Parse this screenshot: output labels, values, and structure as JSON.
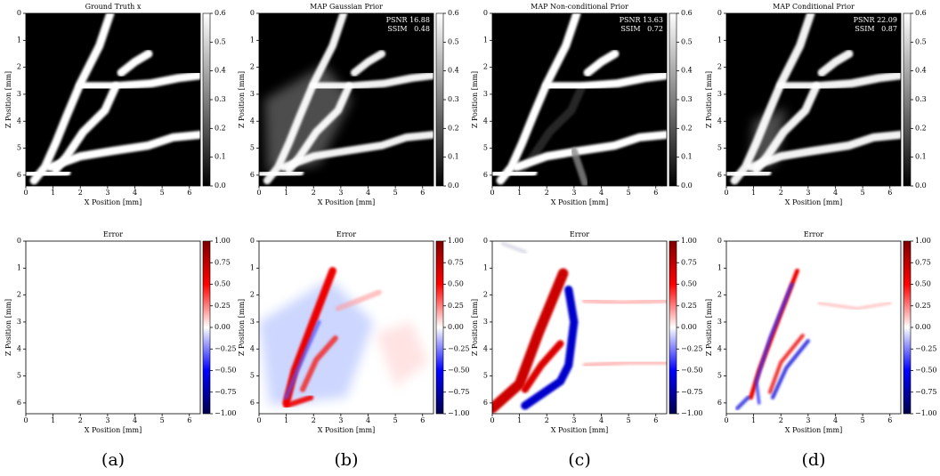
{
  "chart_data": [
    {
      "type": "image",
      "title": "Ground Truth x",
      "xlabel": "X Position [mm]",
      "ylabel": "Z Position [mm]",
      "cmap": "gray",
      "xlim": [
        0,
        6.4
      ],
      "ylim": [
        6.4,
        0
      ],
      "xticks": [
        0,
        1,
        2,
        3,
        4,
        5,
        6
      ],
      "yticks": [
        0,
        1,
        2,
        3,
        4,
        5,
        6
      ],
      "colorbar": {
        "lim": [
          0,
          0.6
        ],
        "ticks": [
          {
            "value": 0,
            "label": "0.0"
          },
          0.1,
          0.2,
          0.3,
          0.4,
          0.5,
          0.6
        ]
      }
    },
    {
      "type": "image",
      "title": "MAP Gaussian Prior",
      "xlabel": "X Position [mm]",
      "ylabel": "Z Position [mm]",
      "cmap": "gray",
      "xlim": [
        0,
        6.4
      ],
      "ylim": [
        6.4,
        0
      ],
      "xticks": [
        0,
        1,
        2,
        3,
        4,
        5,
        6
      ],
      "yticks": [
        0,
        1,
        2,
        3,
        4,
        5,
        6
      ],
      "colorbar": {
        "lim": [
          0,
          0.6
        ],
        "ticks": [
          {
            "value": 0,
            "label": "0.0"
          },
          0.1,
          0.2,
          0.3,
          0.4,
          0.5,
          0.6
        ]
      },
      "annotations": [
        "PSNR 16.88",
        "SSIM   0.48"
      ]
    },
    {
      "type": "image",
      "title": "MAP Non-conditional Prior",
      "xlabel": "X Position [mm]",
      "ylabel": "Z Position [mm]",
      "cmap": "gray",
      "xlim": [
        0,
        6.4
      ],
      "ylim": [
        6.4,
        0
      ],
      "xticks": [
        0,
        1,
        2,
        3,
        4,
        5,
        6
      ],
      "yticks": [
        0,
        1,
        2,
        3,
        4,
        5,
        6
      ],
      "colorbar": {
        "lim": [
          0,
          0.6
        ],
        "ticks": [
          {
            "value": 0,
            "label": "0.0"
          },
          0.1,
          0.2,
          0.3,
          0.4,
          0.5,
          0.6
        ]
      },
      "annotations": [
        "PSNR 13.63",
        "SSIM   0.72"
      ]
    },
    {
      "type": "image",
      "title": "MAP Conditional Prior",
      "xlabel": "X Position [mm]",
      "ylabel": "Z Position [mm]",
      "cmap": "gray",
      "xlim": [
        0,
        6.4
      ],
      "ylim": [
        6.4,
        0
      ],
      "xticks": [
        0,
        1,
        2,
        3,
        4,
        5,
        6
      ],
      "yticks": [
        0,
        1,
        2,
        3,
        4,
        5,
        6
      ],
      "colorbar": {
        "lim": [
          0,
          0.6
        ],
        "ticks": [
          {
            "value": 0,
            "label": "0.0"
          },
          0.1,
          0.2,
          0.3,
          0.4,
          0.5,
          0.6
        ]
      },
      "annotations": [
        "PSNR 22.09",
        "SSIM   0.87"
      ]
    },
    {
      "type": "image",
      "title": "Error",
      "xlabel": "X Position [mm]",
      "ylabel": "Z Position [mm]",
      "cmap": "seismic",
      "xlim": [
        0,
        6.4
      ],
      "ylim": [
        6.4,
        0
      ],
      "xticks": [
        0,
        1,
        2,
        3,
        4,
        5,
        6
      ],
      "yticks": [
        0,
        1,
        2,
        3,
        4,
        5,
        6
      ],
      "colorbar": {
        "lim": [
          -1,
          1
        ],
        "ticks": [
          {
            "value": -1,
            "label": "−1.00"
          },
          {
            "value": -0.75,
            "label": "−0.75"
          },
          {
            "value": -0.5,
            "label": "−0.50"
          },
          {
            "value": -0.25,
            "label": "−0.25"
          },
          {
            "value": 0,
            "label": "0.00"
          },
          {
            "value": 0.25,
            "label": "0.25"
          },
          {
            "value": 0.5,
            "label": "0.50"
          },
          {
            "value": 0.75,
            "label": "0.75"
          },
          {
            "value": 1,
            "label": "1.00"
          }
        ]
      }
    },
    {
      "type": "image",
      "title": "Error",
      "xlabel": "X Position [mm]",
      "ylabel": "Z Position [mm]",
      "cmap": "seismic",
      "xlim": [
        0,
        6.4
      ],
      "ylim": [
        6.4,
        0
      ],
      "xticks": [
        0,
        1,
        2,
        3,
        4,
        5,
        6
      ],
      "yticks": [
        0,
        1,
        2,
        3,
        4,
        5,
        6
      ],
      "colorbar": {
        "lim": [
          -1,
          1
        ],
        "ticks": [
          {
            "value": -1,
            "label": "−1.00"
          },
          {
            "value": -0.75,
            "label": "−0.75"
          },
          {
            "value": -0.5,
            "label": "−0.50"
          },
          {
            "value": -0.25,
            "label": "−0.25"
          },
          {
            "value": 0,
            "label": "0.00"
          },
          {
            "value": 0.25,
            "label": "0.25"
          },
          {
            "value": 0.5,
            "label": "0.50"
          },
          {
            "value": 0.75,
            "label": "0.75"
          },
          {
            "value": 1,
            "label": "1.00"
          }
        ]
      }
    },
    {
      "type": "image",
      "title": "Error",
      "xlabel": "X Position [mm]",
      "ylabel": "Z Position [mm]",
      "cmap": "seismic",
      "xlim": [
        0,
        6.4
      ],
      "ylim": [
        6.4,
        0
      ],
      "xticks": [
        0,
        1,
        2,
        3,
        4,
        5,
        6
      ],
      "yticks": [
        0,
        1,
        2,
        3,
        4,
        5,
        6
      ],
      "colorbar": {
        "lim": [
          -1,
          1
        ],
        "ticks": [
          {
            "value": -1,
            "label": "−1.00"
          },
          {
            "value": -0.75,
            "label": "−0.75"
          },
          {
            "value": -0.5,
            "label": "−0.50"
          },
          {
            "value": -0.25,
            "label": "−0.25"
          },
          {
            "value": 0,
            "label": "0.00"
          },
          {
            "value": 0.25,
            "label": "0.25"
          },
          {
            "value": 0.5,
            "label": "0.50"
          },
          {
            "value": 0.75,
            "label": "0.75"
          },
          {
            "value": 1,
            "label": "1.00"
          }
        ]
      }
    },
    {
      "type": "image",
      "title": "Error",
      "xlabel": "X Position [mm]",
      "ylabel": "Z Position [mm]",
      "cmap": "seismic",
      "xlim": [
        0,
        6.4
      ],
      "ylim": [
        6.4,
        0
      ],
      "xticks": [
        0,
        1,
        2,
        3,
        4,
        5,
        6
      ],
      "yticks": [
        0,
        1,
        2,
        3,
        4,
        5,
        6
      ],
      "colorbar": {
        "lim": [
          -1,
          1
        ],
        "ticks": [
          {
            "value": -1,
            "label": "−1.00"
          },
          {
            "value": -0.75,
            "label": "−0.75"
          },
          {
            "value": -0.5,
            "label": "−0.50"
          },
          {
            "value": -0.25,
            "label": "−0.25"
          },
          {
            "value": 0,
            "label": "0.00"
          },
          {
            "value": 0.25,
            "label": "0.25"
          },
          {
            "value": 0.5,
            "label": "0.50"
          },
          {
            "value": 0.75,
            "label": "0.75"
          },
          {
            "value": 1,
            "label": "1.00"
          }
        ]
      }
    }
  ],
  "captions": [
    "(a)",
    "(b)",
    "(c)",
    "(d)"
  ]
}
